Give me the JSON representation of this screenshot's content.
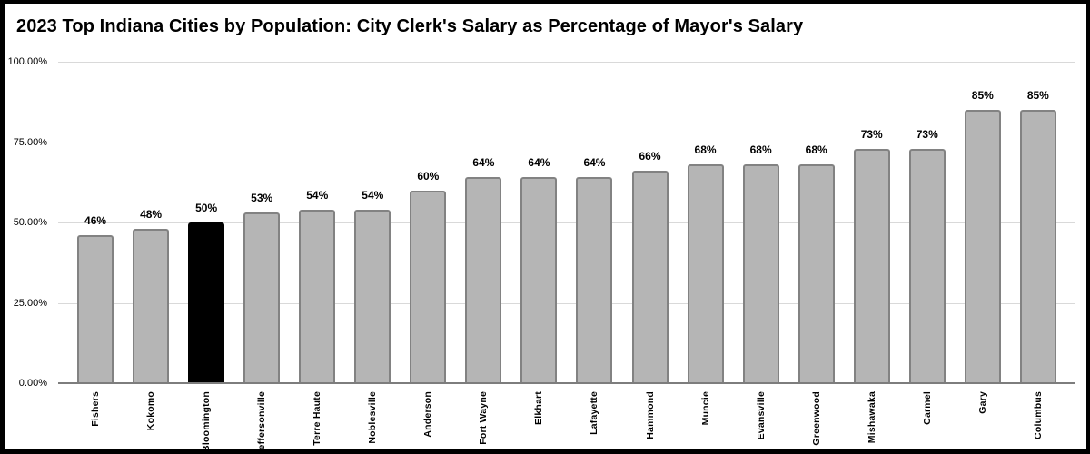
{
  "window": {
    "background": "#ffffff",
    "frame_border_color": "#000000"
  },
  "chart_data": {
    "type": "bar",
    "title": "2023 Top Indiana Cities by Population: City Clerk's Salary as Percentage of Mayor's Salary",
    "xlabel": "",
    "ylabel": "",
    "ylim": [
      0,
      100
    ],
    "grid": true,
    "legend": "none",
    "yticks": [
      {
        "value": 0,
        "label": "0.00%"
      },
      {
        "value": 25,
        "label": "25.00%"
      },
      {
        "value": 50,
        "label": "50.00%"
      },
      {
        "value": 75,
        "label": "75.00%"
      },
      {
        "value": 100,
        "label": "100.00%"
      }
    ],
    "points": [
      {
        "city": "Fishers",
        "value": 46,
        "label": "46%",
        "highlighted": false
      },
      {
        "city": "Kokomo",
        "value": 48,
        "label": "48%",
        "highlighted": false
      },
      {
        "city": "Bloomington",
        "value": 50,
        "label": "50%",
        "highlighted": true
      },
      {
        "city": "Jeffersonville",
        "value": 53,
        "label": "53%",
        "highlighted": false
      },
      {
        "city": "Terre Haute",
        "value": 54,
        "label": "54%",
        "highlighted": false
      },
      {
        "city": "Noblesville",
        "value": 54,
        "label": "54%",
        "highlighted": false
      },
      {
        "city": "Anderson",
        "value": 60,
        "label": "60%",
        "highlighted": false
      },
      {
        "city": "Fort Wayne",
        "value": 64,
        "label": "64%",
        "highlighted": false
      },
      {
        "city": "Elkhart",
        "value": 64,
        "label": "64%",
        "highlighted": false
      },
      {
        "city": "Lafayette",
        "value": 64,
        "label": "64%",
        "highlighted": false
      },
      {
        "city": "Hammond",
        "value": 66,
        "label": "66%",
        "highlighted": false
      },
      {
        "city": "Muncie",
        "value": 68,
        "label": "68%",
        "highlighted": false
      },
      {
        "city": "Evansville",
        "value": 68,
        "label": "68%",
        "highlighted": false
      },
      {
        "city": "Greenwood",
        "value": 68,
        "label": "68%",
        "highlighted": false
      },
      {
        "city": "Mishawaka",
        "value": 73,
        "label": "73%",
        "highlighted": false
      },
      {
        "city": "Carmel",
        "value": 73,
        "label": "73%",
        "highlighted": false
      },
      {
        "city": "Gary",
        "value": 85,
        "label": "85%",
        "highlighted": false
      },
      {
        "city": "Columbus",
        "value": 85,
        "label": "85%",
        "highlighted": false
      }
    ],
    "colors": {
      "bar_fill": "#b5b5b5",
      "bar_border": "#828282",
      "highlight_fill": "#000000",
      "highlight_border": "#000000",
      "gridline": "#d9d9d9",
      "axis_line": "#7d7d7d",
      "label_text": "#000000"
    }
  }
}
